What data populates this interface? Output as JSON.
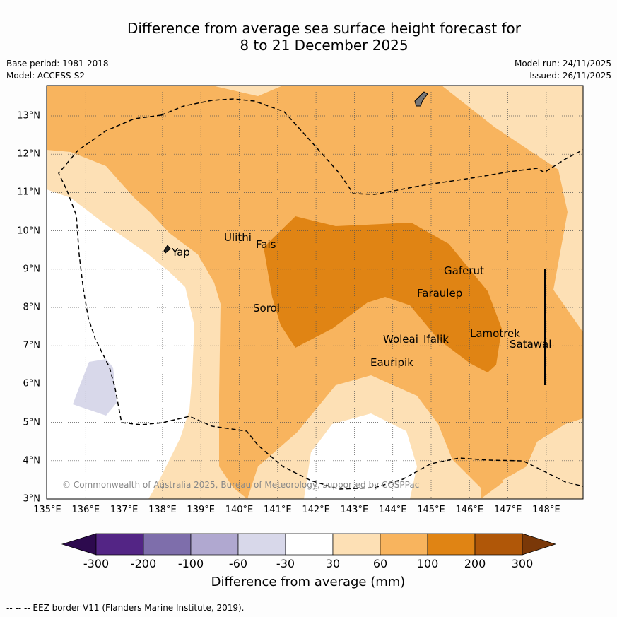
{
  "title": {
    "line1": "Difference from average sea surface height forecast for",
    "line2": "8 to 21 December 2025"
  },
  "meta": {
    "base_period": "Base period: 1981-2018",
    "model": "Model: ACCESS-S2",
    "model_run": "Model run: 24/11/2025",
    "issued": "Issued: 26/11/2025"
  },
  "map": {
    "lat_labels": [
      "13°N",
      "12°N",
      "11°N",
      "10°N",
      "9°N",
      "8°N",
      "7°N",
      "6°N",
      "5°N",
      "4°N",
      "3°N"
    ],
    "lon_labels": [
      "135°E",
      "136°E",
      "137°E",
      "138°E",
      "139°E",
      "140°E",
      "141°E",
      "142°E",
      "143°E",
      "144°E",
      "145°E",
      "146°E",
      "147°E",
      "148°E"
    ],
    "places": {
      "yap": "Yap",
      "ulithi": "Ulithi",
      "fais": "Fais",
      "sorol": "Sorol",
      "gaferut": "Gaferut",
      "faraulep": "Faraulep",
      "woleai": "Woleai",
      "ifalik": "Ifalik",
      "lamotrek": "Lamotrek",
      "satawal": "Satawal",
      "eauripik": "Eauripik"
    },
    "copyright": "© Commonwealth of Australia 2025, Bureau of Meteorology, supported by COSPPac"
  },
  "colorbar": {
    "labels": [
      "-300",
      "-200",
      "-100",
      "-60",
      "-30",
      "30",
      "60",
      "100",
      "200",
      "300"
    ],
    "colors": [
      "#2d0a4e",
      "#532585",
      "#7e6eab",
      "#b0a8d0",
      "#d8d8ea",
      "#ffffff",
      "#fde0b5",
      "#f8b45e",
      "#e08414",
      "#b05708",
      "#7a3808"
    ],
    "title": "Difference from average (mm)"
  },
  "footer": "--  --  -- EEZ border V11 (Flanders Marine Institute, 2019)."
}
